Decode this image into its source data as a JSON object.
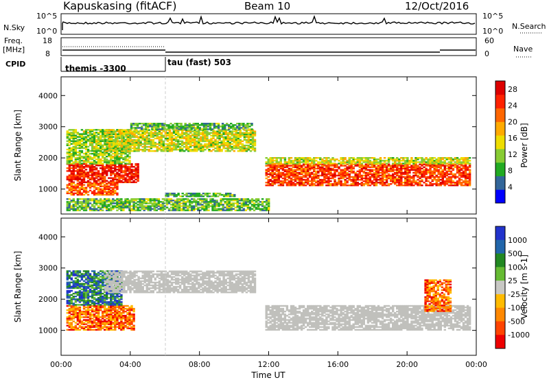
{
  "header": {
    "station": "Kapuskasing (fitACF)",
    "beam": "Beam 10",
    "date": "12/Oct/2016"
  },
  "panels": {
    "nsky": {
      "label": "N.Sky",
      "right_label": "N.Search",
      "ticks": [
        "10^5",
        "10^0"
      ]
    },
    "freq": {
      "label_line1": "Freq.",
      "label_line2": "[MHz]",
      "right_label": "Nave",
      "left_ticks": [
        "18",
        "8"
      ],
      "right_ticks": [
        "60",
        "0"
      ]
    },
    "cpid": {
      "label": "CPID",
      "modes": [
        "themis -3300",
        "tau (fast) 503"
      ]
    }
  },
  "colors": {
    "power_scale": [
      "#0000ff",
      "#336699",
      "#22aa22",
      "#88cc33",
      "#eedd00",
      "#ffaa00",
      "#ff6600",
      "#ff2200",
      "#dd0000"
    ],
    "velocity_scale": [
      "#2233cc",
      "#2266aa",
      "#228822",
      "#66bb33",
      "#c8c8c4",
      "#ffbb00",
      "#ff8800",
      "#ff4400",
      "#ee0000"
    ],
    "ground_scatter": "#c0c0bc"
  },
  "chart_data": [
    {
      "type": "heatmap",
      "title": "Power",
      "xlabel": "Time UT",
      "ylabel": "Slant Range [km]",
      "x_ticks": [
        "00:00",
        "04:00",
        "08:00",
        "12:00",
        "16:00",
        "20:00",
        "00:00"
      ],
      "y_ticks": [
        "1000",
        "2000",
        "3000",
        "4000"
      ],
      "xlim_hours": [
        0,
        24
      ],
      "ylim_km": [
        200,
        4600
      ],
      "colorbar_label": "Power [dB]",
      "colorbar_ticks": [
        "4",
        "8",
        "12",
        "16",
        "20",
        "24",
        "28"
      ],
      "colorbar_range": [
        0,
        30
      ],
      "echo_regions": [
        {
          "t": [
            0.3,
            4.4
          ],
          "r": [
            1200,
            1800
          ],
          "level": 26
        },
        {
          "t": [
            0.3,
            3.2
          ],
          "r": [
            800,
            1200
          ],
          "level": 22
        },
        {
          "t": [
            0.3,
            4.0
          ],
          "r": [
            1800,
            2900
          ],
          "level": 12
        },
        {
          "t": [
            2.5,
            11.2
          ],
          "r": [
            2200,
            2900
          ],
          "level": 14
        },
        {
          "t": [
            4.0,
            11.0
          ],
          "r": [
            2900,
            3100
          ],
          "level": 9
        },
        {
          "t": [
            11.8,
            23.6
          ],
          "r": [
            1100,
            1800
          ],
          "level": 24
        },
        {
          "t": [
            11.8,
            23.6
          ],
          "r": [
            1800,
            2000
          ],
          "level": 14
        },
        {
          "t": [
            0.3,
            12.0
          ],
          "r": [
            300,
            700
          ],
          "level": 10
        },
        {
          "t": [
            6.0,
            10.0
          ],
          "r": [
            750,
            850
          ],
          "level": 10
        }
      ]
    },
    {
      "type": "heatmap",
      "title": "Velocity",
      "xlabel": "Time UT",
      "ylabel": "Slant Range [km]",
      "x_ticks": [
        "00:00",
        "04:00",
        "08:00",
        "12:00",
        "16:00",
        "20:00",
        "00:00"
      ],
      "y_ticks": [
        "1000",
        "2000",
        "3000",
        "4000"
      ],
      "xlim_hours": [
        0,
        24
      ],
      "ylim_km": [
        200,
        4600
      ],
      "colorbar_label": "Velocity [m s-1]",
      "colorbar_ticks": [
        "1000",
        "500",
        "100",
        "25",
        "-25",
        "-100",
        "-500",
        "-1000"
      ],
      "echo_regions": [
        {
          "t": [
            0.3,
            4.2
          ],
          "r": [
            1000,
            1800
          ],
          "kind": "velocity_negative"
        },
        {
          "t": [
            0.3,
            3.5
          ],
          "r": [
            1800,
            2900
          ],
          "kind": "velocity_positive"
        },
        {
          "t": [
            2.5,
            11.2
          ],
          "r": [
            2200,
            2900
          ],
          "kind": "ground_scatter"
        },
        {
          "t": [
            11.8,
            23.6
          ],
          "r": [
            1000,
            1800
          ],
          "kind": "ground_scatter"
        },
        {
          "t": [
            21.0,
            22.5
          ],
          "r": [
            1600,
            2600
          ],
          "kind": "velocity_negative"
        }
      ]
    }
  ]
}
